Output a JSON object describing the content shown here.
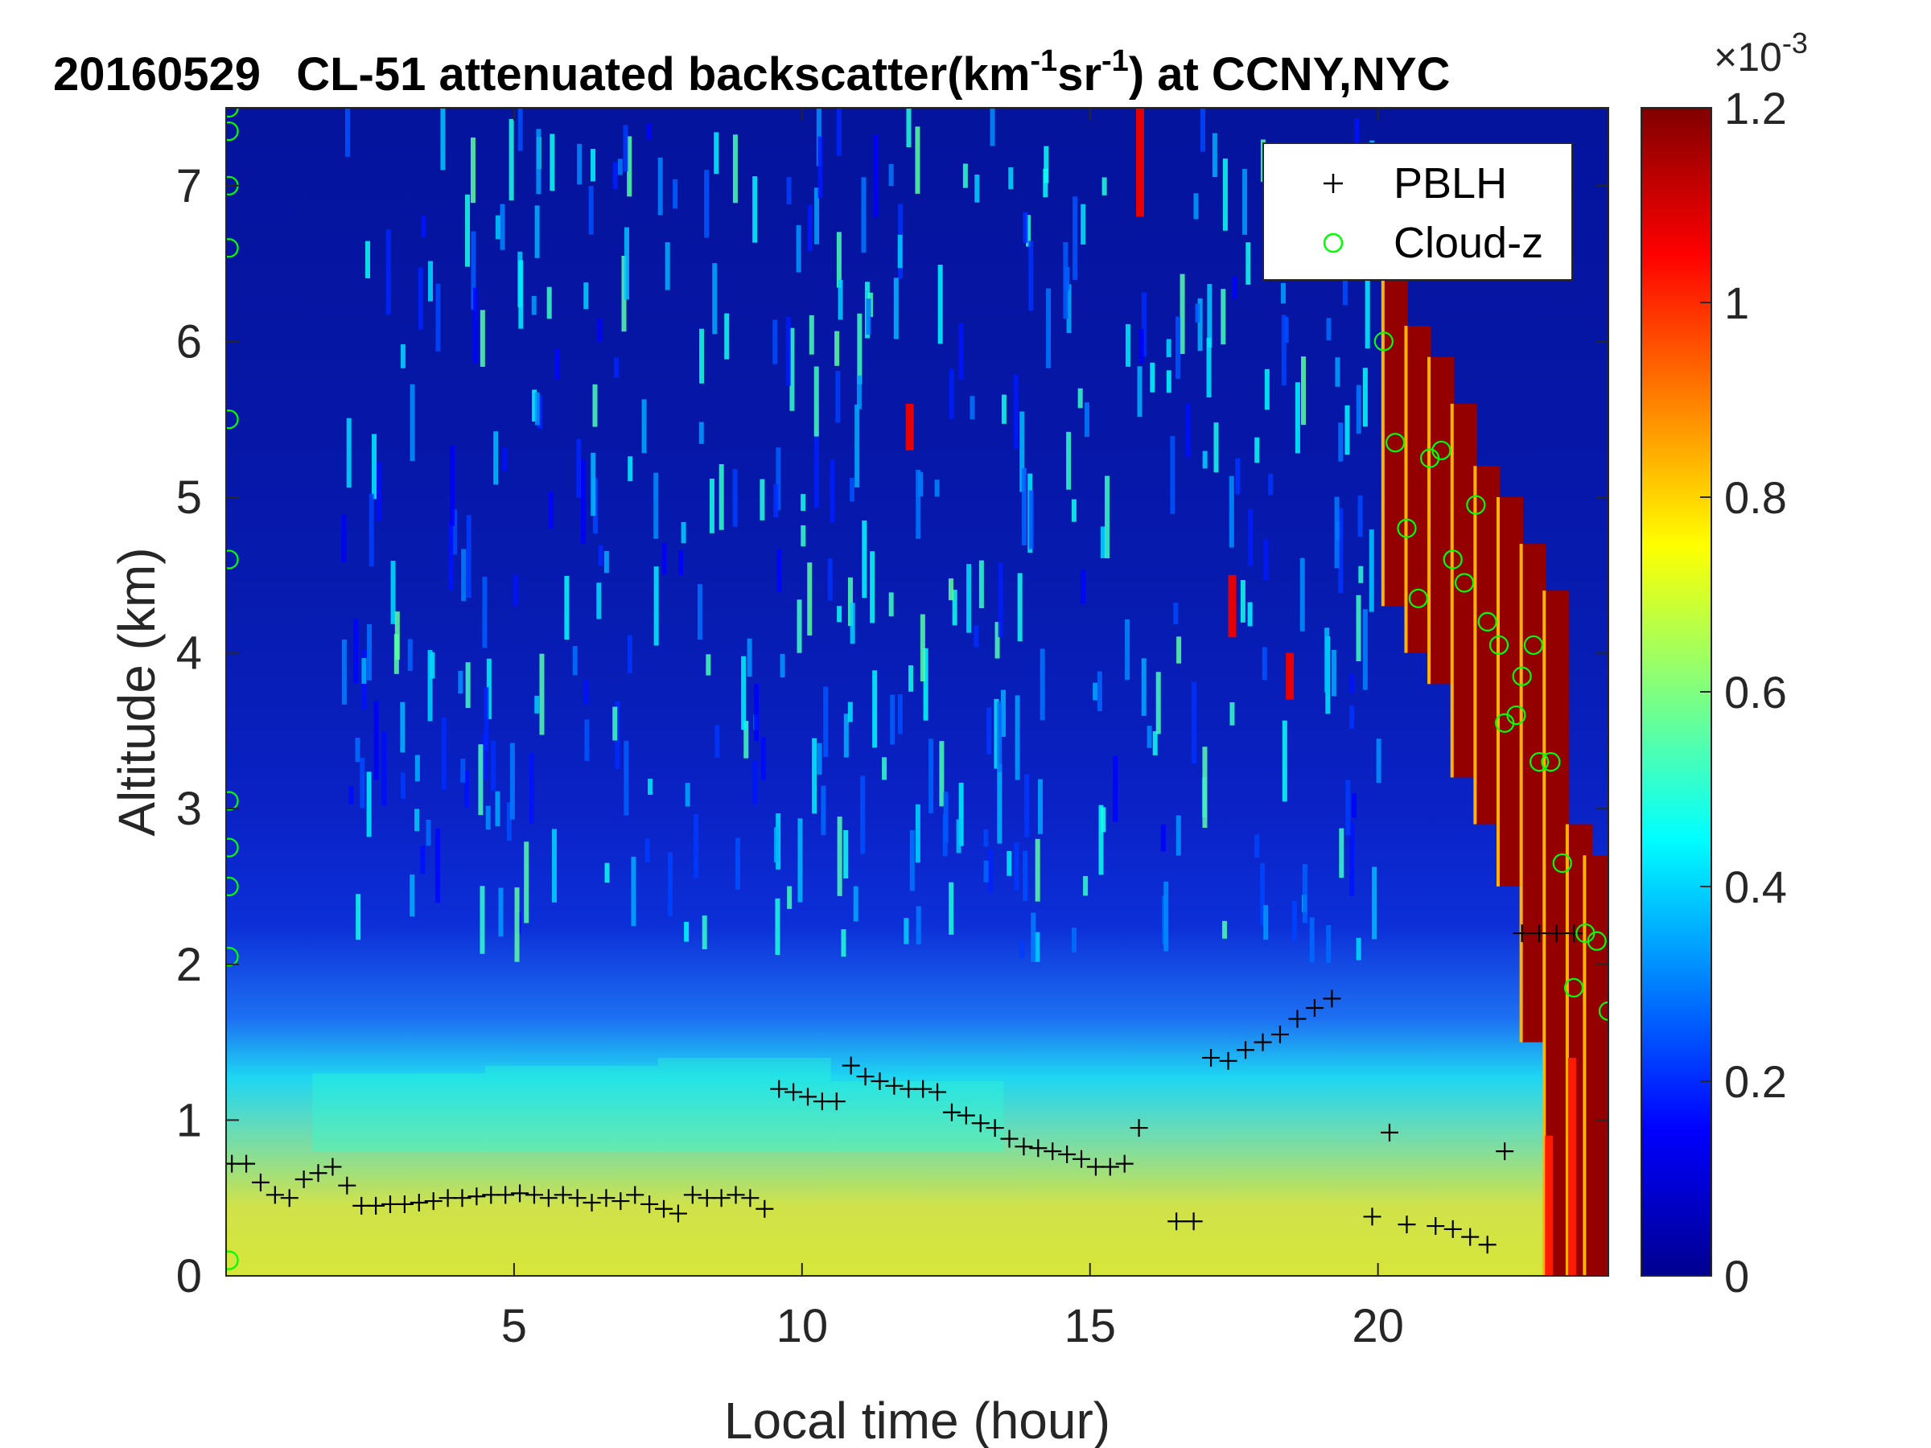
{
  "chart_data": {
    "type": "heatmap",
    "title": {
      "date": "20160529",
      "prefix": "CL-51 attenuated backscatter(km",
      "sup1": "-1",
      "mid": "sr",
      "sup2": "-1",
      "suffix": ") at CCNY,NYC"
    },
    "xlabel": "Local time (hour)",
    "ylabel": "Altitude (km)",
    "xlim": [
      0,
      24
    ],
    "ylim": [
      0,
      7.5
    ],
    "x_ticks": [
      5,
      10,
      15,
      20
    ],
    "y_ticks": [
      0,
      1,
      2,
      3,
      4,
      5,
      6,
      7
    ],
    "colorbar": {
      "range": [
        0,
        0.0012
      ],
      "ticks": [
        0,
        0.2,
        0.4,
        0.6,
        0.8,
        1,
        1.2
      ],
      "exponent_base": "×10",
      "exponent_power": "-3",
      "colormap": "jet"
    },
    "legend": {
      "position": "top-right",
      "entries": [
        {
          "label": "PBLH",
          "marker": "+",
          "color": "#000000"
        },
        {
          "label": "Cloud-z",
          "marker": "o",
          "color": "#00ff00"
        }
      ]
    },
    "series": [
      {
        "name": "PBLH",
        "x": [
          0.1,
          0.35,
          0.6,
          0.85,
          1.1,
          1.35,
          1.6,
          1.85,
          2.1,
          2.35,
          2.6,
          2.85,
          3.1,
          3.35,
          3.6,
          3.85,
          4.1,
          4.35,
          4.6,
          4.85,
          5.1,
          5.35,
          5.6,
          5.85,
          6.1,
          6.35,
          6.6,
          6.85,
          7.1,
          7.35,
          7.6,
          7.85,
          8.1,
          8.35,
          8.6,
          8.85,
          9.1,
          9.35,
          9.6,
          9.85,
          10.1,
          10.35,
          10.6,
          10.85,
          11.1,
          11.35,
          11.6,
          11.85,
          12.1,
          12.35,
          12.6,
          12.85,
          13.1,
          13.35,
          13.6,
          13.85,
          14.1,
          14.35,
          14.6,
          14.85,
          15.1,
          15.35,
          15.6,
          15.85,
          16.5,
          16.8,
          17.1,
          17.4,
          17.7,
          18.0,
          18.3,
          18.6,
          18.9,
          19.2,
          19.9,
          20.2,
          20.5,
          21.0,
          21.3,
          21.6,
          21.9,
          22.2,
          22.5,
          22.8,
          23.1,
          23.4
        ],
        "y": [
          0.72,
          0.72,
          0.6,
          0.52,
          0.5,
          0.62,
          0.66,
          0.7,
          0.58,
          0.45,
          0.45,
          0.46,
          0.46,
          0.47,
          0.48,
          0.5,
          0.5,
          0.51,
          0.52,
          0.52,
          0.53,
          0.52,
          0.5,
          0.52,
          0.5,
          0.47,
          0.5,
          0.48,
          0.52,
          0.46,
          0.43,
          0.4,
          0.52,
          0.5,
          0.5,
          0.52,
          0.5,
          0.43,
          1.2,
          1.18,
          1.15,
          1.12,
          1.12,
          1.35,
          1.28,
          1.25,
          1.22,
          1.2,
          1.2,
          1.18,
          1.05,
          1.03,
          0.98,
          0.95,
          0.88,
          0.83,
          0.82,
          0.8,
          0.78,
          0.75,
          0.7,
          0.7,
          0.72,
          0.95,
          0.35,
          0.35,
          1.4,
          1.38,
          1.45,
          1.5,
          1.55,
          1.65,
          1.72,
          1.78,
          0.38,
          0.92,
          0.33,
          0.32,
          0.3,
          0.25,
          0.2,
          0.8,
          2.2,
          2.2,
          2.2,
          2.2
        ]
      },
      {
        "name": "Cloud-z",
        "x": [
          0.05,
          0.05,
          0.05,
          0.05,
          0.05,
          0.05,
          0.05,
          0.05,
          0.05,
          0.05,
          0.05,
          20.1,
          20.3,
          20.5,
          20.7,
          20.9,
          21.1,
          21.3,
          21.5,
          21.7,
          21.9,
          22.1,
          22.2,
          22.4,
          22.5,
          22.7,
          22.8,
          23.0,
          23.2,
          23.4,
          23.6,
          23.8,
          24.0
        ],
        "y": [
          7.5,
          7.35,
          7.0,
          6.6,
          5.5,
          4.6,
          3.05,
          2.75,
          2.5,
          2.05,
          0.1,
          6.0,
          5.35,
          4.8,
          4.35,
          5.25,
          5.3,
          4.6,
          4.45,
          4.95,
          4.2,
          4.05,
          3.55,
          3.6,
          3.85,
          4.05,
          3.3,
          3.3,
          2.65,
          1.85,
          2.2,
          2.15,
          1.7
        ]
      }
    ],
    "features": [
      {
        "name": "aerosol-layer",
        "x_range": [
          0,
          23
        ],
        "altitude_km": [
          0,
          1.8
        ],
        "level": 0.6
      },
      {
        "name": "cloud-layer",
        "x_range": [
          20,
          24
        ],
        "altitude_km": [
          0,
          6.5
        ],
        "level": 1.2
      }
    ]
  }
}
